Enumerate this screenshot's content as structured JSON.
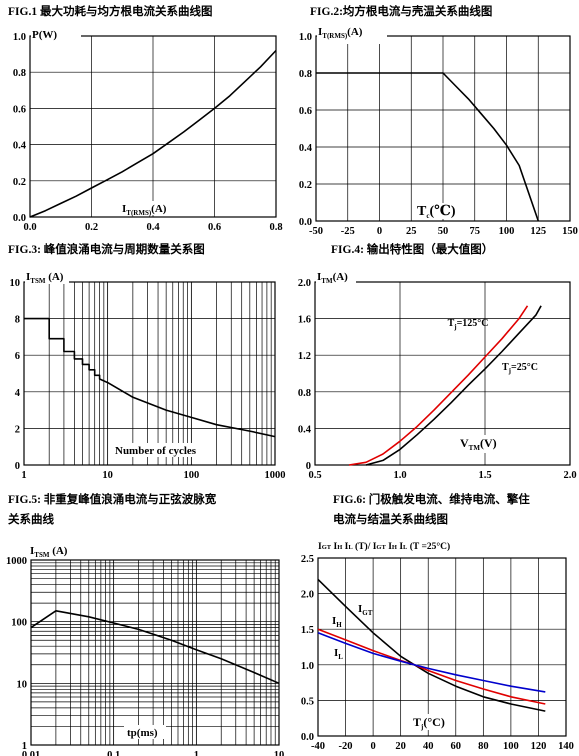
{
  "chart_data": [
    {
      "id": "fig1",
      "type": "line",
      "title": "FIG.1 最大功耗与均方根电流关系曲线图",
      "ylabel": "P(W)",
      "xlabel": "I(A)",
      "xlabel_main": "I",
      "xlabel_sub": "T(RMS)",
      "xlabel_tail": "(A)",
      "xlim": [
        0,
        0.8
      ],
      "ylim": [
        0,
        1.0
      ],
      "xticks": [
        "0.0",
        "0.2",
        "0.4",
        "0.6",
        "0.8"
      ],
      "yticks": [
        "0.0",
        "0.2",
        "0.4",
        "0.6",
        "0.8",
        "1.0"
      ],
      "grid": true,
      "series": [
        {
          "color": "#000000",
          "x": [
            0,
            0.05,
            0.1,
            0.15,
            0.2,
            0.25,
            0.3,
            0.35,
            0.4,
            0.45,
            0.5,
            0.55,
            0.6,
            0.65,
            0.7,
            0.75,
            0.8
          ],
          "y": [
            0,
            0.035,
            0.075,
            0.115,
            0.16,
            0.205,
            0.25,
            0.3,
            0.35,
            0.41,
            0.47,
            0.535,
            0.6,
            0.67,
            0.75,
            0.83,
            0.92
          ]
        }
      ]
    },
    {
      "id": "fig2",
      "type": "line",
      "title": "FIG.2:均方根电流与壳温关系曲线图",
      "ylabel": "I(A)",
      "ylabel_main": "I",
      "ylabel_sub": "T(RMS)",
      "ylabel_tail": "(A)",
      "xlabel_main": "T",
      "xlabel_sub": "c",
      "xlabel_tail": "(℃)",
      "xlim": [
        -50,
        150
      ],
      "ylim": [
        0,
        1.0
      ],
      "xticks": [
        "-50",
        "-25",
        "0",
        "25",
        "50",
        "75",
        "100",
        "125",
        "150"
      ],
      "yticks": [
        "0.0",
        "0.2",
        "0.4",
        "0.6",
        "0.8",
        "1.0"
      ],
      "grid": true,
      "series": [
        {
          "color": "#000000",
          "x": [
            -50,
            50,
            60,
            70,
            80,
            90,
            100,
            110,
            125
          ],
          "y": [
            0.8,
            0.8,
            0.73,
            0.66,
            0.58,
            0.5,
            0.41,
            0.3,
            0.0
          ]
        }
      ]
    },
    {
      "id": "fig3",
      "type": "line",
      "title": "FIG.3: 峰值浪涌电流与周期数量关系图",
      "ylabel_main": "I",
      "ylabel_sub": "TSM",
      "ylabel_tail": " (A)",
      "xlabel": "Number of cycles",
      "xscale": "log",
      "xlim": [
        1,
        1000
      ],
      "ylim": [
        0,
        10
      ],
      "xticks": [
        "1",
        "10",
        "100",
        "1000"
      ],
      "yticks": [
        "0",
        "2",
        "4",
        "6",
        "8",
        "10"
      ],
      "grid": true,
      "series": [
        {
          "color": "#000000",
          "x": [
            1,
            2,
            2,
            3,
            3,
            4,
            4,
            5,
            5,
            6,
            6,
            7,
            7,
            8,
            8,
            10,
            20,
            50,
            100,
            200,
            500,
            1000
          ],
          "y": [
            8.0,
            8.0,
            6.9,
            6.9,
            6.2,
            6.2,
            5.8,
            5.8,
            5.5,
            5.5,
            5.2,
            5.2,
            4.9,
            4.9,
            4.7,
            4.5,
            3.7,
            3.0,
            2.6,
            2.2,
            1.85,
            1.55
          ]
        }
      ]
    },
    {
      "id": "fig4",
      "type": "line",
      "title": "FIG.4: 输出特性图（最大值图）",
      "ylabel_main": "I",
      "ylabel_sub": "TM",
      "ylabel_tail": "(A)",
      "xlabel_main": "V",
      "xlabel_sub": "TM",
      "xlabel_tail": "(V)",
      "xlim": [
        0.5,
        2.0
      ],
      "ylim": [
        0,
        2.0
      ],
      "xticks": [
        "0.5",
        "1.0",
        "1.5",
        "2.0"
      ],
      "yticks": [
        "0",
        "0.4",
        "0.8",
        "1.2",
        "1.6",
        "2.0"
      ],
      "grid": true,
      "annotations": [
        {
          "main": "T",
          "sub": "j",
          "tail": "=125°C",
          "x": 1.28,
          "y": 1.52
        },
        {
          "main": "T",
          "sub": "j",
          "tail": "=25°C",
          "x": 1.6,
          "y": 1.04
        }
      ],
      "series": [
        {
          "name": "T=125°C",
          "color": "#e00000",
          "x": [
            0.7,
            0.8,
            0.9,
            1.0,
            1.1,
            1.2,
            1.3,
            1.4,
            1.5,
            1.6,
            1.7,
            1.75
          ],
          "y": [
            0.0,
            0.03,
            0.12,
            0.26,
            0.42,
            0.6,
            0.79,
            0.98,
            1.18,
            1.38,
            1.6,
            1.74
          ]
        },
        {
          "name": "T=25°C",
          "color": "#000000",
          "x": [
            0.8,
            0.9,
            1.0,
            1.1,
            1.2,
            1.3,
            1.4,
            1.5,
            1.6,
            1.7,
            1.8,
            1.83
          ],
          "y": [
            0.0,
            0.05,
            0.17,
            0.33,
            0.5,
            0.68,
            0.87,
            1.05,
            1.24,
            1.44,
            1.64,
            1.74
          ]
        }
      ]
    },
    {
      "id": "fig5",
      "type": "line",
      "title_line1": "FIG.5: 非重复峰值浪涌电流与正弦波脉宽",
      "title_line2": "关系曲线",
      "ylabel_main": "I",
      "ylabel_sub": "TSM",
      "ylabel_tail": " (A)",
      "xlabel": "tp(ms)",
      "xscale": "log",
      "yscale": "log",
      "xlim": [
        0.01,
        10
      ],
      "ylim": [
        1,
        1000
      ],
      "xticks": [
        "0.01",
        "0.1",
        "1",
        "10"
      ],
      "yticks": [
        "1",
        "10",
        "100",
        "1000"
      ],
      "grid": true,
      "series": [
        {
          "color": "#000000",
          "x": [
            0.01,
            0.02,
            0.05,
            0.1,
            0.2,
            0.5,
            1,
            2,
            5,
            10
          ],
          "y": [
            80,
            150,
            120,
            95,
            75,
            50,
            35,
            25,
            15,
            10
          ]
        }
      ]
    },
    {
      "id": "fig6",
      "type": "line",
      "title_line1": "FIG.6: 门极触发电流、维持电流、擎住",
      "title_line2": "电流与结温关系曲线图",
      "ylabel": "I GT I H I L (T)/ I GT I H I L (T =25°C)",
      "xlabel_main": "T",
      "xlabel_sub": "j",
      "xlabel_tail": "(°C)",
      "xlim": [
        -40,
        140
      ],
      "ylim": [
        0,
        2.5
      ],
      "xticks": [
        "-40",
        "-20",
        "0",
        "20",
        "40",
        "60",
        "80",
        "100",
        "120",
        "140"
      ],
      "yticks": [
        "0.0",
        "0.5",
        "1.0",
        "1.5",
        "2.0",
        "2.5"
      ],
      "grid": true,
      "series": [
        {
          "name": "IGT",
          "color": "#000000",
          "x": [
            -40,
            -20,
            0,
            20,
            30,
            40,
            60,
            80,
            100,
            125
          ],
          "y": [
            2.2,
            1.82,
            1.45,
            1.12,
            1.0,
            0.88,
            0.7,
            0.55,
            0.45,
            0.35
          ]
        },
        {
          "name": "IH",
          "color": "#e00000",
          "x": [
            -40,
            -20,
            0,
            20,
            30,
            40,
            60,
            80,
            100,
            125
          ],
          "y": [
            1.5,
            1.35,
            1.2,
            1.06,
            1.0,
            0.92,
            0.78,
            0.66,
            0.55,
            0.45
          ]
        },
        {
          "name": "IL",
          "color": "#0000cc",
          "x": [
            -40,
            -20,
            0,
            20,
            30,
            40,
            60,
            80,
            100,
            125
          ],
          "y": [
            1.45,
            1.3,
            1.16,
            1.05,
            1.0,
            0.95,
            0.86,
            0.78,
            0.7,
            0.62
          ]
        }
      ]
    }
  ]
}
